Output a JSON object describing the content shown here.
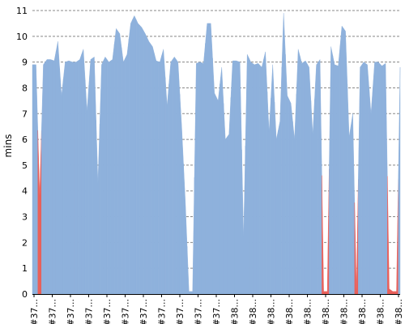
{
  "chart_data": {
    "type": "area",
    "ylabel": "mins",
    "ylim": [
      0,
      11
    ],
    "y_ticks": [
      0,
      1,
      2,
      3,
      4,
      5,
      6,
      7,
      8,
      9,
      10,
      11
    ],
    "grid": "horizontal-dashed",
    "x_tick_labels": [
      "#37...",
      "#37...",
      "#37...",
      "#37...",
      "#37...",
      "#37...",
      "#37...",
      "#37...",
      "#37...",
      "#37...",
      "#37...",
      "#38...",
      "#38...",
      "#38...",
      "#38...",
      "#38...",
      "#38...",
      "#38...",
      "#38...",
      "#38...",
      "#38..."
    ],
    "colors": {
      "success": "#8eb1dc",
      "failure": "#e8605b",
      "grid": "#888888",
      "axis": "#000000"
    },
    "series": [
      {
        "values": [
          8.9,
          8.9,
          3.8,
          8.9,
          9.1,
          9.1,
          9.05,
          9.8,
          7.7,
          9.0,
          9.05,
          9.0,
          9.0,
          9.1,
          9.5,
          7.1,
          9.1,
          9.2,
          4.3,
          8.9,
          9.2,
          9.0,
          9.1,
          10.3,
          10.1,
          9.0,
          9.3,
          10.5,
          10.8,
          10.5,
          10.35,
          10.1,
          9.8,
          9.6,
          9.05,
          9.0,
          9.5,
          7.3,
          9.0,
          9.2,
          9.0,
          6.5,
          3.6,
          0.1,
          0.1,
          8.95,
          9.0,
          8.95,
          10.5,
          10.5,
          7.8,
          7.5,
          8.8,
          6.0,
          6.2,
          9.05,
          9.05,
          9.0,
          2.2,
          9.3,
          9.0,
          8.9,
          8.95,
          8.8,
          9.4,
          6.3,
          8.9,
          6.0,
          6.7,
          10.9,
          7.7,
          7.4,
          6.0,
          9.5,
          8.95,
          9.05,
          8.8,
          6.2,
          8.9,
          9.1,
          0.1,
          0.1,
          9.6,
          8.9,
          8.85,
          10.4,
          10.2,
          6.1,
          7.0,
          0.1,
          8.8,
          9.0,
          8.9,
          7.0,
          9.0,
          9.0,
          8.85,
          8.95,
          0.2,
          0.1,
          0.1,
          8.8
        ],
        "status": [
          "s",
          "s",
          "f",
          "s",
          "s",
          "s",
          "s",
          "s",
          "s",
          "s",
          "s",
          "s",
          "s",
          "s",
          "s",
          "s",
          "s",
          "s",
          "s",
          "s",
          "s",
          "s",
          "s",
          "s",
          "s",
          "s",
          "s",
          "s",
          "s",
          "s",
          "s",
          "s",
          "s",
          "s",
          "s",
          "s",
          "s",
          "s",
          "s",
          "s",
          "s",
          "s",
          "s",
          "s",
          "s",
          "s",
          "s",
          "s",
          "s",
          "s",
          "s",
          "s",
          "s",
          "s",
          "s",
          "s",
          "s",
          "s",
          "s",
          "s",
          "s",
          "s",
          "s",
          "s",
          "s",
          "s",
          "s",
          "s",
          "s",
          "s",
          "s",
          "s",
          "s",
          "s",
          "s",
          "s",
          "s",
          "s",
          "s",
          "s",
          "f",
          "f",
          "s",
          "s",
          "s",
          "s",
          "s",
          "s",
          "s",
          "f",
          "s",
          "s",
          "s",
          "s",
          "s",
          "s",
          "s",
          "s",
          "f",
          "f",
          "f",
          "s"
        ]
      }
    ]
  }
}
